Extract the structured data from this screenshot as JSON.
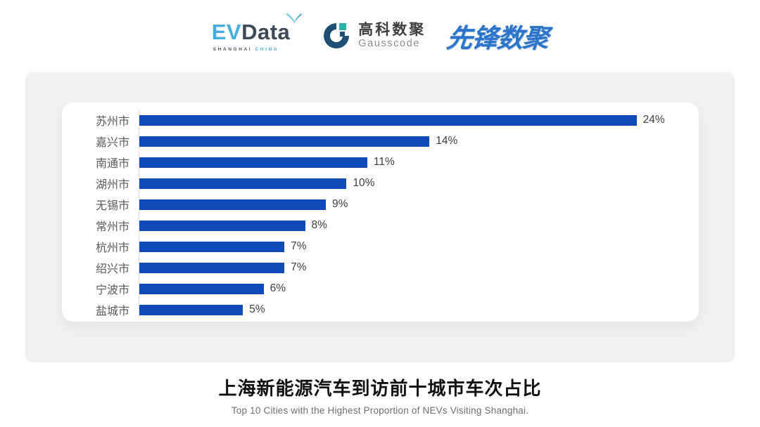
{
  "header": {
    "evdata": {
      "ev": "EV",
      "data": "Data",
      "sub_left": "SHANGHAI",
      "sub_right": "CHINA"
    },
    "gausscode": {
      "cn": "高科数聚",
      "en": "Gausscode"
    },
    "xianfeng": {
      "text": "先锋数聚"
    }
  },
  "chart_data": {
    "type": "bar",
    "orientation": "horizontal",
    "title": "上海新能源汽车到访前十城市车次占比",
    "subtitle": "Top 10 Cities with the Highest Proportion of  NEVs Visiting Shanghai.",
    "categories": [
      "苏州市",
      "嘉兴市",
      "南通市",
      "湖州市",
      "无锡市",
      "常州市",
      "杭州市",
      "绍兴市",
      "宁波市",
      "盐城市"
    ],
    "values": [
      24,
      14,
      11,
      10,
      9,
      8,
      7,
      7,
      6,
      5
    ],
    "value_labels": [
      "24%",
      "14%",
      "11%",
      "10%",
      "9%",
      "8%",
      "7%",
      "7%",
      "6%",
      "5%"
    ],
    "xlabel": "",
    "ylabel": "",
    "xlim": [
      0,
      27
    ],
    "grid": false,
    "legend": false,
    "bar_color": "#1149b8",
    "axis_line_color": "#e1e1e1",
    "panel_color": "#f0f0f0",
    "card_color": "#ffffff"
  }
}
